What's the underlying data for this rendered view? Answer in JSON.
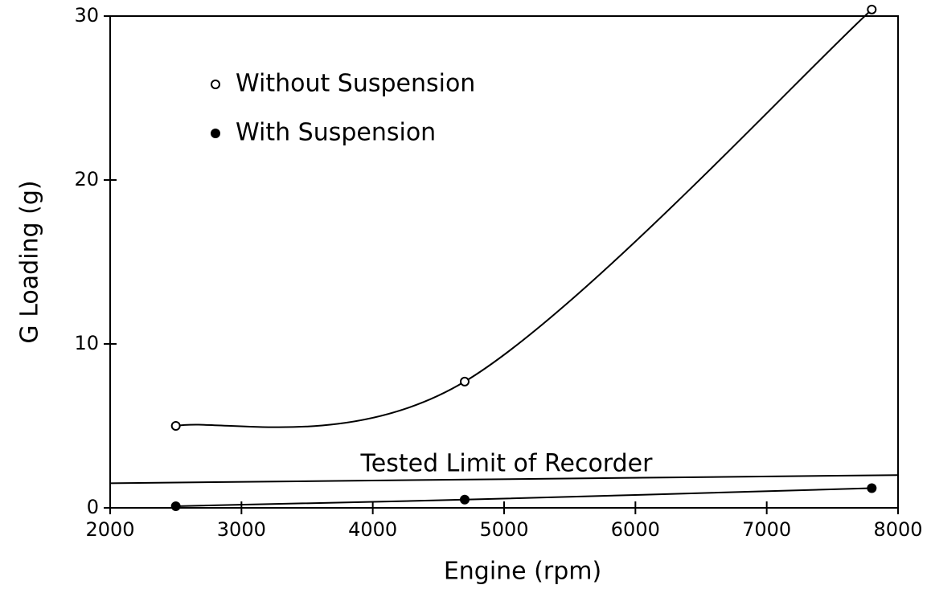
{
  "chart_data": {
    "type": "line",
    "x_label": "Engine (rpm)",
    "y_label": "G Loading (g)",
    "xlim": [
      2000,
      8000
    ],
    "xticks": [
      2000,
      3000,
      4000,
      5000,
      6000,
      7000,
      8000
    ],
    "ylim": [
      0,
      30
    ],
    "yticks": [
      0,
      10,
      20,
      30
    ],
    "legend": "upper left",
    "series": [
      {
        "name": "Without Suspension",
        "color": "#000000",
        "marker": "open",
        "x": [
          2500,
          4700,
          7800
        ],
        "values": [
          5.0,
          7.7,
          30.4
        ]
      },
      {
        "name": "With Suspension",
        "color": "#000000",
        "marker": "filled",
        "x": [
          2500,
          4700,
          7800
        ],
        "values": [
          0.1,
          0.5,
          1.2
        ]
      }
    ],
    "limit_line": {
      "label": "Tested Limit of Recorder",
      "x": [
        2000,
        8000
      ],
      "values": [
        1.5,
        2.0
      ]
    }
  }
}
